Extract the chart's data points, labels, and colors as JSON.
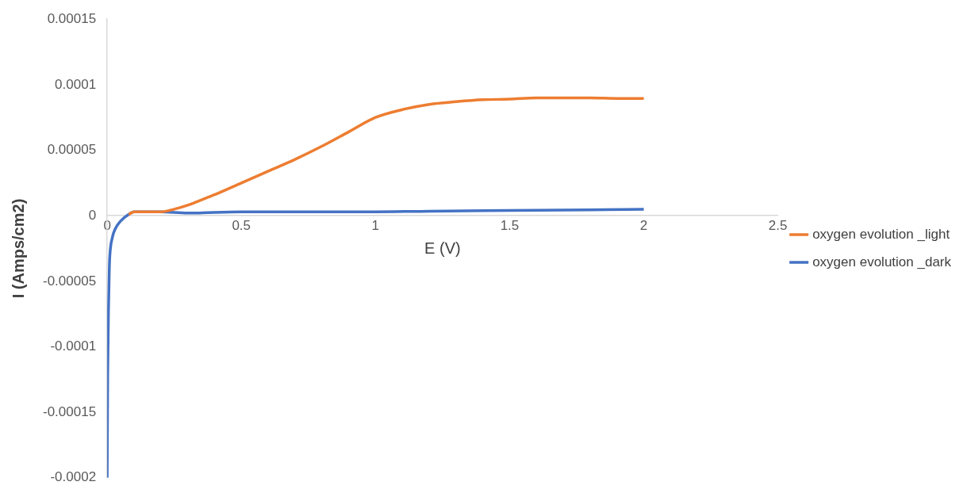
{
  "chart_data": {
    "type": "line",
    "xlabel": "E (V)",
    "ylabel": "I (Amps/cm2)",
    "xlim": [
      0,
      2.5
    ],
    "xticks": [
      0,
      0.5,
      1,
      1.5,
      2,
      2.5
    ],
    "ylim": [
      -0.0002,
      0.00015
    ],
    "yticks": [
      -0.0002,
      -0.00015,
      -0.0001,
      {
        "value": -5e-05,
        "label": "-0.00005"
      },
      0,
      {
        "value": 5e-05,
        "label": "0.00005"
      },
      0.0001,
      0.00015
    ],
    "grid": false,
    "legend": "right",
    "marker": "none",
    "line_style": "solid",
    "series": [
      {
        "name": "oxygen evolution _light",
        "color": "#ed7d31",
        "x": [
          0.08,
          0.1,
          0.15,
          0.2,
          0.25,
          0.3,
          0.35,
          0.4,
          0.5,
          0.6,
          0.7,
          0.8,
          0.9,
          1.0,
          1.1,
          1.2,
          1.3,
          1.4,
          1.5,
          1.6,
          1.7,
          1.8,
          1.9,
          2.0
        ],
        "values": [
          1e-06,
          3e-06,
          3e-06,
          3e-06,
          5e-06,
          8e-06,
          1.2e-05,
          1.6e-05,
          2.5e-05,
          3.4e-05,
          4.3e-05,
          5.3e-05,
          6.4e-05,
          7.5e-05,
          8.1e-05,
          8.5e-05,
          8.7e-05,
          8.85e-05,
          8.9e-05,
          9e-05,
          9e-05,
          9e-05,
          8.95e-05,
          8.95e-05
        ]
      },
      {
        "name": "oxygen evolution _dark",
        "color": "#4472c4",
        "x": [
          0,
          0.002,
          0.005,
          0.008,
          0.01,
          0.02,
          0.03,
          0.05,
          0.08,
          0.1,
          0.15,
          0.2,
          0.3,
          0.5,
          0.7,
          1.0,
          1.2,
          1.5,
          1.8,
          2.0
        ],
        "values": [
          -0.0002,
          -0.00012,
          -7e-05,
          -4e-05,
          -3e-05,
          -1.6e-05,
          -1e-05,
          -4e-06,
          1e-06,
          3e-06,
          3e-06,
          3e-06,
          2e-06,
          3e-06,
          3e-06,
          3e-06,
          3.5e-06,
          4e-06,
          4.5e-06,
          5e-06
        ]
      }
    ]
  }
}
